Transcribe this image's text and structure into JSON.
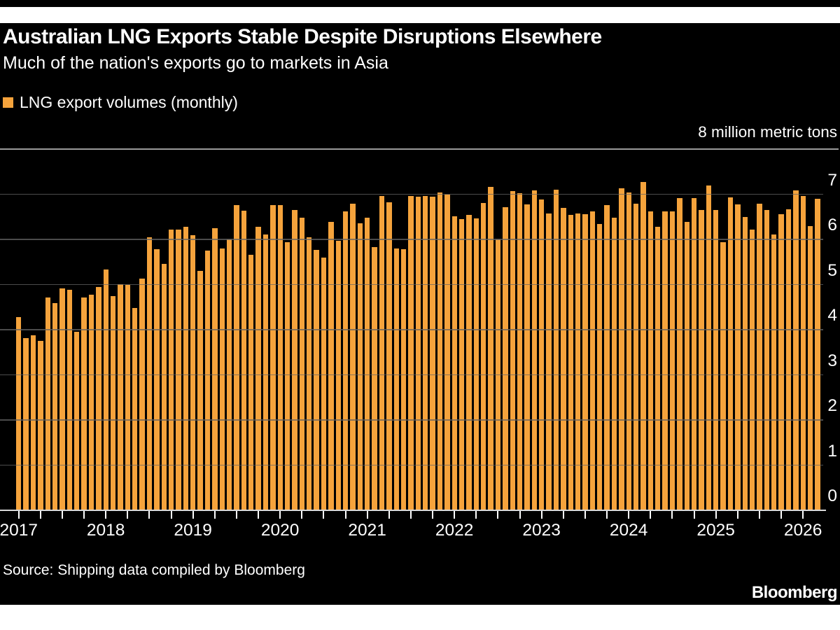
{
  "header": {
    "title": "Australian LNG Exports Stable Despite Disruptions Elsewhere",
    "subtitle": "Much of the nation's exports go to markets in Asia"
  },
  "legend": {
    "label": "LNG export volumes (monthly)"
  },
  "axis": {
    "unit_label": "8 million metric tons",
    "y_tick_labels": [
      "0",
      "1",
      "2",
      "3",
      "4",
      "5",
      "6",
      "7"
    ],
    "x_tick_labels": [
      "2017",
      "2018",
      "2019",
      "2020",
      "2021",
      "2022",
      "2023",
      "2024",
      "2025",
      "2026"
    ]
  },
  "footer": {
    "source": "Source: Shipping data compiled by Bloomberg",
    "brand": "Bloomberg"
  },
  "colors": {
    "bar": "#F5A33C",
    "background": "#000000",
    "gridline": "#4a4a4a",
    "top_gridline": "#9a9a9a",
    "axis_line": "#d9d9d9",
    "text": "#ffffff"
  },
  "chart_data": {
    "type": "bar",
    "title": "Australian LNG Exports Stable Despite Disruptions Elsewhere",
    "subtitle": "Much of the nation's exports go to markets in Asia",
    "legend": [
      "LNG export volumes (monthly)"
    ],
    "ylabel": "8 million metric tons",
    "ylim": [
      0,
      8
    ],
    "y_ticks": [
      0,
      1,
      2,
      3,
      4,
      5,
      6,
      7,
      8
    ],
    "grid": true,
    "legend_position": "top-left",
    "x_start": "2017-01",
    "x_interval": "monthly",
    "x_tick_interval": "quarterly",
    "x_year_labels": [
      2017,
      2018,
      2019,
      2020,
      2021,
      2022,
      2023,
      2024,
      2025,
      2026
    ],
    "values": [
      4.26,
      3.8,
      3.86,
      3.74,
      4.7,
      4.57,
      4.9,
      4.87,
      3.94,
      4.7,
      4.76,
      4.93,
      5.32,
      4.73,
      4.99,
      4.98,
      4.47,
      5.11,
      6.03,
      5.76,
      5.44,
      6.2,
      6.2,
      6.26,
      6.08,
      5.29,
      5.73,
      6.23,
      5.78,
      5.99,
      6.75,
      6.62,
      5.65,
      6.26,
      6.09,
      6.75,
      6.74,
      5.92,
      6.64,
      6.47,
      6.03,
      5.75,
      5.58,
      6.37,
      5.95,
      6.6,
      6.78,
      6.34,
      6.47,
      5.82,
      6.95,
      6.8,
      5.78,
      5.76,
      6.94,
      6.93,
      6.95,
      6.93,
      7.03,
      6.97,
      6.49,
      6.44,
      6.53,
      6.45,
      6.79,
      7.15,
      5.99,
      6.7,
      7.05,
      7.01,
      6.76,
      7.07,
      6.87,
      6.56,
      7.09,
      6.68,
      6.53,
      6.56,
      6.54,
      6.61,
      6.33,
      6.75,
      6.46,
      7.12,
      7.02,
      6.78,
      7.25,
      6.6,
      6.27,
      6.6,
      6.61,
      6.9,
      6.37,
      6.9,
      6.63,
      7.18,
      6.63,
      5.92,
      6.92,
      6.76,
      6.48,
      6.2,
      6.78,
      6.63,
      6.09,
      6.54,
      6.65,
      7.07,
      6.95,
      6.28,
      6.89
    ]
  }
}
